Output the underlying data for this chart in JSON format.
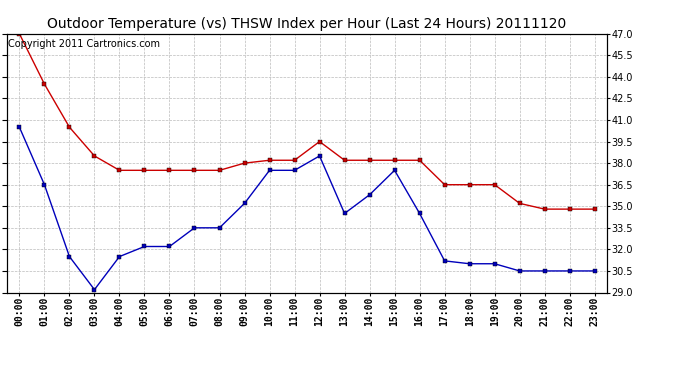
{
  "title": "Outdoor Temperature (vs) THSW Index per Hour (Last 24 Hours) 20111120",
  "copyright_text": "Copyright 2011 Cartronics.com",
  "hours": [
    "00:00",
    "01:00",
    "02:00",
    "03:00",
    "04:00",
    "05:00",
    "06:00",
    "07:00",
    "08:00",
    "09:00",
    "10:00",
    "11:00",
    "12:00",
    "13:00",
    "14:00",
    "15:00",
    "16:00",
    "17:00",
    "18:00",
    "19:00",
    "20:00",
    "21:00",
    "22:00",
    "23:00"
  ],
  "temp_blue": [
    40.5,
    36.5,
    31.5,
    29.2,
    31.5,
    32.2,
    32.2,
    33.5,
    33.5,
    35.2,
    37.5,
    37.5,
    38.5,
    34.5,
    35.8,
    37.5,
    34.5,
    31.2,
    31.0,
    31.0,
    30.5,
    30.5,
    30.5,
    30.5
  ],
  "thsw_red": [
    47.0,
    43.5,
    40.5,
    38.5,
    37.5,
    37.5,
    37.5,
    37.5,
    37.5,
    38.0,
    38.2,
    38.2,
    39.5,
    38.2,
    38.2,
    38.2,
    38.2,
    36.5,
    36.5,
    36.5,
    35.2,
    34.8,
    34.8,
    34.8
  ],
  "ylim": [
    29.0,
    47.0
  ],
  "yticks": [
    29.0,
    30.5,
    32.0,
    33.5,
    35.0,
    36.5,
    38.0,
    39.5,
    41.0,
    42.5,
    44.0,
    45.5,
    47.0
  ],
  "blue_color": "#0000bb",
  "red_color": "#cc0000",
  "bg_color": "#ffffff",
  "grid_color": "#bbbbbb",
  "title_fontsize": 10,
  "axis_fontsize": 7,
  "copyright_fontsize": 7
}
